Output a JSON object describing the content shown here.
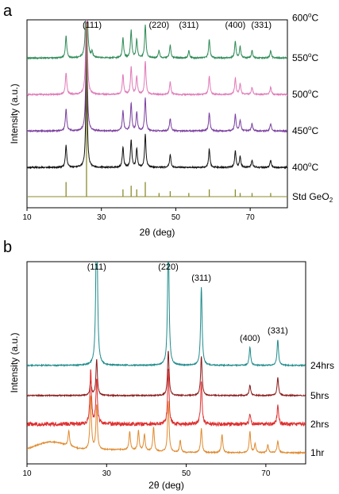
{
  "chart_data": [
    {
      "type": "line",
      "panel": "a",
      "xlabel": "2θ (deg)",
      "ylabel": "Intensity (a.u.)",
      "xlim": [
        10,
        80
      ],
      "xticks": [
        "10",
        "30",
        "50",
        "70"
      ],
      "xtick_values": [
        10,
        30,
        50,
        70
      ],
      "grid": false,
      "peak_labels": [
        {
          "text": "(111)",
          "x": 27.5
        },
        {
          "text": "(220)",
          "x": 45.5
        },
        {
          "text": "(311)",
          "x": 53.5
        },
        {
          "text": "(400)",
          "x": 66.0
        },
        {
          "text": "(331)",
          "x": 73.0
        }
      ],
      "series": [
        {
          "name": "600°C",
          "label_main": "600",
          "label_sup": "o",
          "label_tail": "C",
          "color": "#e08a2e",
          "offset": 0.98,
          "hump": true,
          "peaks": [
            [
              20.5,
              0.1
            ],
            [
              26.0,
              0.66
            ],
            [
              27.5,
              0.48
            ],
            [
              35.8,
              0.14
            ],
            [
              38.0,
              0.2
            ],
            [
              39.5,
              0.16
            ],
            [
              41.8,
              0.24
            ],
            [
              45.5,
              0.32
            ],
            [
              48.5,
              0.08
            ],
            [
              53.5,
              0.22
            ],
            [
              59.0,
              0.14
            ],
            [
              66.0,
              0.16
            ],
            [
              67.3,
              0.08
            ],
            [
              70.5,
              0.06
            ],
            [
              73.0,
              0.09
            ],
            [
              75.5,
              0.05
            ]
          ]
        },
        {
          "name": "550°C",
          "label_main": "550",
          "label_sup": "o",
          "label_tail": "C",
          "color": "#2e8b57",
          "offset": 0.76,
          "hump": false,
          "peaks": [
            [
              20.5,
              0.12
            ],
            [
              26.0,
              0.6
            ],
            [
              27.5,
              0.03
            ],
            [
              35.8,
              0.11
            ],
            [
              38.0,
              0.15
            ],
            [
              39.5,
              0.1
            ],
            [
              41.8,
              0.18
            ],
            [
              45.5,
              0.04
            ],
            [
              48.5,
              0.07
            ],
            [
              53.5,
              0.04
            ],
            [
              59.0,
              0.1
            ],
            [
              66.0,
              0.09
            ],
            [
              67.3,
              0.06
            ],
            [
              70.5,
              0.04
            ],
            [
              75.5,
              0.04
            ]
          ]
        },
        {
          "name": "500°C",
          "label_main": "500",
          "label_sup": "o",
          "label_tail": "C",
          "color": "#e07ab8",
          "offset": 0.56,
          "hump": false,
          "peaks": [
            [
              20.5,
              0.12
            ],
            [
              26.0,
              0.6
            ],
            [
              35.8,
              0.11
            ],
            [
              38.0,
              0.15
            ],
            [
              39.5,
              0.1
            ],
            [
              41.8,
              0.18
            ],
            [
              48.5,
              0.07
            ],
            [
              59.0,
              0.1
            ],
            [
              66.0,
              0.09
            ],
            [
              67.3,
              0.06
            ],
            [
              70.5,
              0.04
            ],
            [
              75.5,
              0.04
            ]
          ]
        },
        {
          "name": "450°C",
          "label_main": "450",
          "label_sup": "o",
          "label_tail": "C",
          "color": "#7b3fa0",
          "offset": 0.36,
          "hump": false,
          "peaks": [
            [
              20.5,
              0.12
            ],
            [
              26.0,
              0.6
            ],
            [
              35.8,
              0.11
            ],
            [
              38.0,
              0.15
            ],
            [
              39.5,
              0.1
            ],
            [
              41.8,
              0.18
            ],
            [
              48.5,
              0.07
            ],
            [
              59.0,
              0.1
            ],
            [
              66.0,
              0.09
            ],
            [
              67.3,
              0.06
            ],
            [
              70.5,
              0.04
            ],
            [
              75.5,
              0.04
            ]
          ]
        },
        {
          "name": "400°C",
          "label_main": "400",
          "label_sup": "o",
          "label_tail": "C",
          "color": "#111111",
          "offset": 0.16,
          "hump": false,
          "peaks": [
            [
              20.5,
              0.12
            ],
            [
              26.0,
              0.6
            ],
            [
              35.8,
              0.11
            ],
            [
              38.0,
              0.15
            ],
            [
              39.5,
              0.1
            ],
            [
              41.8,
              0.18
            ],
            [
              48.5,
              0.07
            ],
            [
              59.0,
              0.1
            ],
            [
              66.0,
              0.09
            ],
            [
              67.3,
              0.06
            ],
            [
              70.5,
              0.04
            ],
            [
              75.5,
              0.04
            ]
          ]
        },
        {
          "name": "Std GeO2",
          "label_main": "Std GeO",
          "label_sub": "2",
          "color": "#8b8b2e",
          "offset": 0.0,
          "stick": true,
          "peaks": [
            [
              20.5,
              0.08
            ],
            [
              26.0,
              0.95
            ],
            [
              35.8,
              0.04
            ],
            [
              38.0,
              0.06
            ],
            [
              39.5,
              0.04
            ],
            [
              41.8,
              0.08
            ],
            [
              45.5,
              0.02
            ],
            [
              48.5,
              0.03
            ],
            [
              53.5,
              0.02
            ],
            [
              59.0,
              0.04
            ],
            [
              66.0,
              0.04
            ],
            [
              67.3,
              0.02
            ],
            [
              70.5,
              0.02
            ],
            [
              75.5,
              0.02
            ]
          ]
        }
      ]
    },
    {
      "type": "line",
      "panel": "b",
      "xlabel": "2θ (deg)",
      "ylabel": "Intensity (a.u.)",
      "xlim": [
        10,
        80
      ],
      "xticks": [
        "10",
        "30",
        "50",
        "70"
      ],
      "xtick_values": [
        10,
        30,
        50,
        70
      ],
      "grid": false,
      "peak_labels": [
        {
          "text": "(111)",
          "x": 27.5
        },
        {
          "text": "(220)",
          "x": 45.5
        },
        {
          "text": "(311)",
          "x": 53.8
        },
        {
          "text": "(400)",
          "x": 66.0
        },
        {
          "text": "(331)",
          "x": 73.0
        }
      ],
      "series": [
        {
          "name": "24hrs",
          "label_main": "24hrs",
          "color": "#1f8b8b",
          "offset": 0.58,
          "hump": false,
          "peaks": [
            [
              27.5,
              1.2
            ],
            [
              45.5,
              0.88
            ],
            [
              53.8,
              0.52
            ],
            [
              66.0,
              0.12
            ],
            [
              73.0,
              0.17
            ]
          ]
        },
        {
          "name": "5hrs",
          "label_main": "5hrs",
          "color": "#8b1a1a",
          "offset": 0.38,
          "hump": false,
          "peaks": [
            [
              26.0,
              0.1
            ],
            [
              27.5,
              0.24
            ],
            [
              45.5,
              0.3
            ],
            [
              53.8,
              0.26
            ],
            [
              66.0,
              0.07
            ],
            [
              73.0,
              0.12
            ]
          ]
        },
        {
          "name": "2hrs",
          "label_main": "2hrs",
          "color": "#e03030",
          "offset": 0.19,
          "hump": false,
          "noisy": true,
          "peaks": [
            [
              26.0,
              0.36
            ],
            [
              27.5,
              0.3
            ],
            [
              45.5,
              0.36
            ],
            [
              53.8,
              0.28
            ],
            [
              66.0,
              0.06
            ],
            [
              73.0,
              0.12
            ]
          ]
        },
        {
          "name": "1hr",
          "label_main": "1hr",
          "color": "#e08a2e",
          "offset": 0.0,
          "hump": true,
          "peaks": [
            [
              20.5,
              0.1
            ],
            [
              26.0,
              0.36
            ],
            [
              27.5,
              0.3
            ],
            [
              35.8,
              0.12
            ],
            [
              38.0,
              0.13
            ],
            [
              39.5,
              0.11
            ],
            [
              41.8,
              0.16
            ],
            [
              45.5,
              0.34
            ],
            [
              48.5,
              0.08
            ],
            [
              53.8,
              0.16
            ],
            [
              59.0,
              0.12
            ],
            [
              66.0,
              0.14
            ],
            [
              67.3,
              0.06
            ],
            [
              70.5,
              0.05
            ],
            [
              73.0,
              0.08
            ]
          ]
        }
      ]
    }
  ]
}
